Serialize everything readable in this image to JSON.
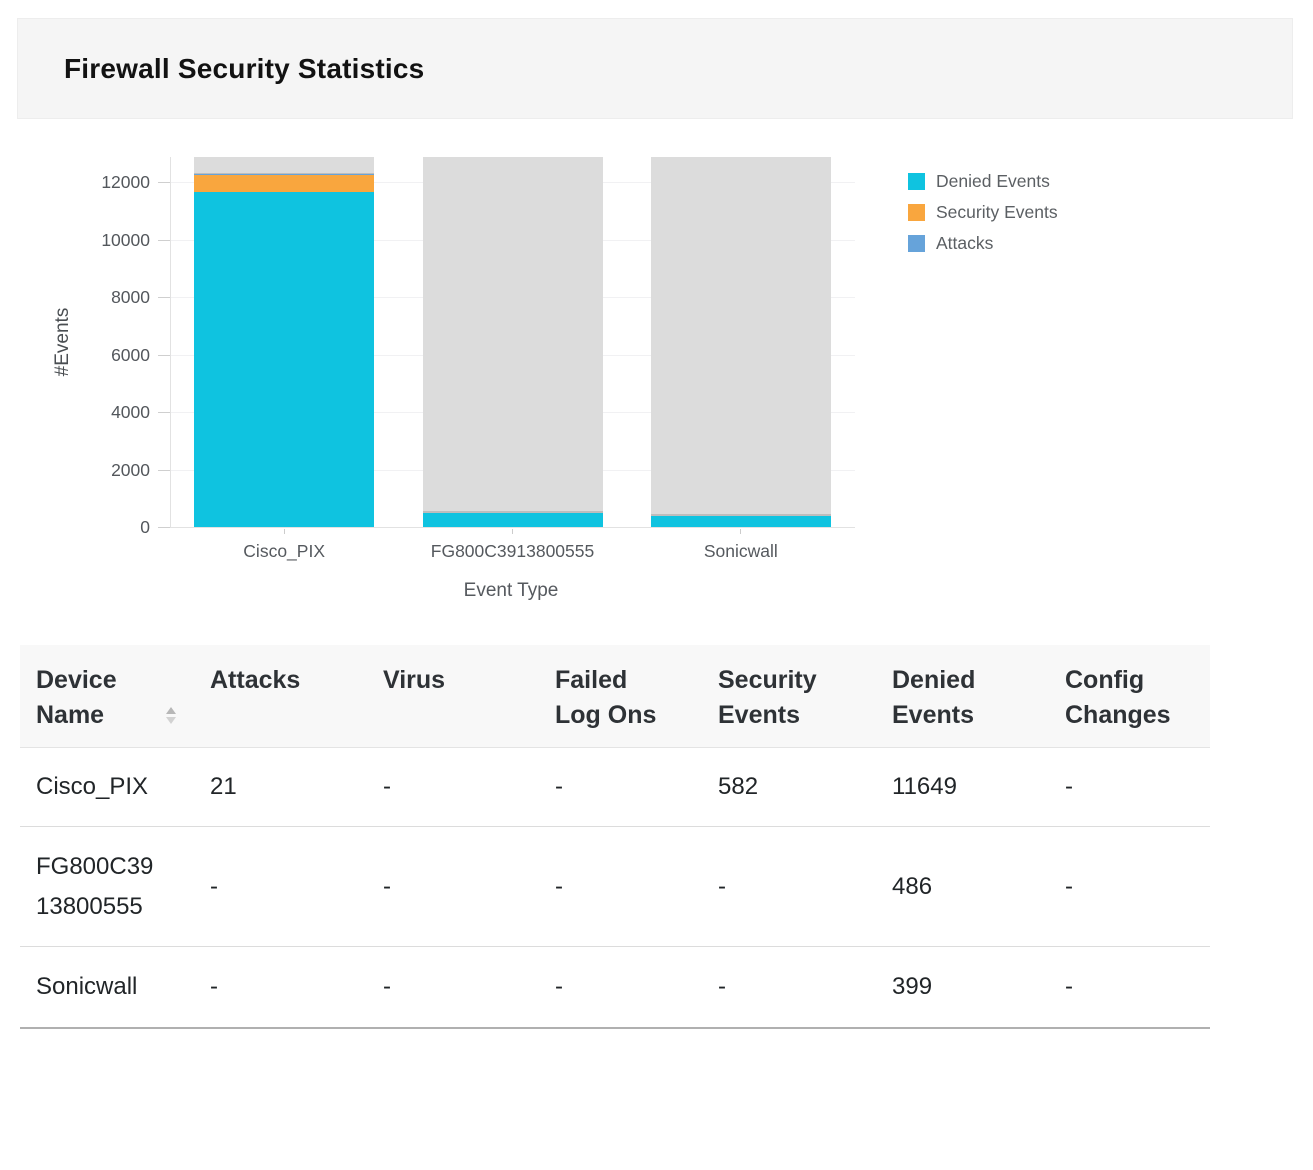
{
  "header": {
    "title": "Firewall Security Statistics"
  },
  "chart_data": {
    "type": "bar",
    "stacked": true,
    "categories": [
      "Cisco_PIX",
      "FG800C3913800555",
      "Sonicwall"
    ],
    "series": [
      {
        "name": "Denied Events",
        "color": "#0fc3e0",
        "values": [
          11649,
          486,
          399
        ]
      },
      {
        "name": "Security Events",
        "color": "#f9a63e",
        "values": [
          582,
          0,
          0
        ]
      },
      {
        "name": "Attacks",
        "color": "#66a3da",
        "values": [
          21,
          0,
          0
        ]
      }
    ],
    "xlabel": "Event Type",
    "ylabel": "#Events",
    "ylim": [
      0,
      12870
    ],
    "yticks": [
      0,
      2000,
      4000,
      6000,
      8000,
      10000,
      12000
    ],
    "grid": true,
    "legend_position": "right",
    "track_color": "#dcdcdc",
    "track_edge_color": "#bdbdbd",
    "grid_color": "#f1f1f3",
    "axis_color": "#e2e2e2",
    "tick_text_color": "#53575c"
  },
  "table": {
    "columns": [
      "Device Name",
      "Attacks",
      "Virus",
      "Failed Log Ons",
      "Security Events",
      "Denied Events",
      "Config Changes"
    ],
    "sorted_column": "Device Name",
    "rows": [
      [
        "Cisco_PIX",
        "21",
        "-",
        "-",
        "582",
        "11649",
        "-"
      ],
      [
        "FG800C3913800555",
        "-",
        "-",
        "-",
        "-",
        "486",
        "-"
      ],
      [
        "Sonicwall",
        "-",
        "-",
        "-",
        "-",
        "399",
        "-"
      ]
    ]
  }
}
